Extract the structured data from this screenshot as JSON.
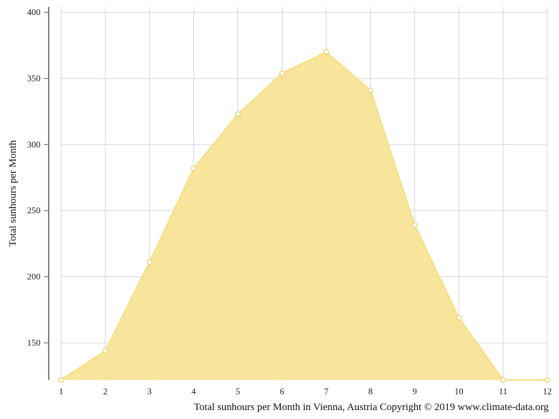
{
  "chart_data": {
    "type": "area",
    "x": [
      1,
      2,
      3,
      4,
      5,
      6,
      7,
      8,
      9,
      10,
      11,
      12
    ],
    "series": [
      {
        "values": [
          122,
          144,
          211,
          282,
          323,
          354,
          370,
          341,
          239,
          169,
          122,
          122
        ]
      }
    ],
    "xlabel": "",
    "ylabel": "Total sunhours per Month",
    "caption": "Total sunhours per Month in Vienna, Austria Copyright © 2019 www.climate-data.org",
    "ylim": [
      122,
      400
    ],
    "xlim": [
      1,
      12
    ],
    "yticks": [
      150,
      200,
      250,
      300,
      350,
      400
    ],
    "xticks": [
      1,
      2,
      3,
      4,
      5,
      6,
      7,
      8,
      9,
      10,
      11,
      12
    ],
    "grid": true,
    "colors": {
      "fill": "#f7e08a",
      "stroke": "#f5df80",
      "marker_fill": "#ffffff",
      "marker_stroke": "#e8cf60",
      "grid": "#d5d5d5",
      "axis": "#555555"
    }
  }
}
